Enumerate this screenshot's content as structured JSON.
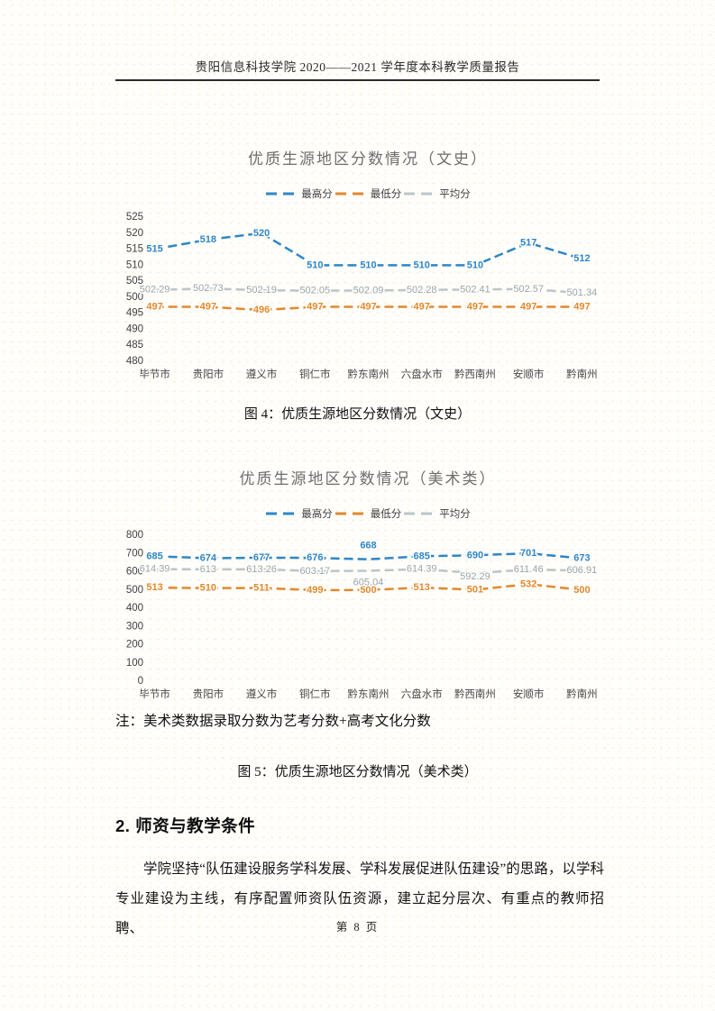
{
  "header": {
    "title": "贵阳信息科技学院 2020——2021 学年度本科教学质量报告"
  },
  "figures": {
    "fig4_caption": "图 4：优质生源地区分数情况（文史）",
    "fig5_caption": "图 5：优质生源地区分数情况（美术类）",
    "note": "注：美术类数据录取分数为艺考分数+高考文化分数"
  },
  "section": {
    "heading": "2. 师资与教学条件",
    "paragraph": "学院坚持“队伍建设服务学科发展、学科发展促进队伍建设”的思路，以学科专业建设为主线，有序配置师资队伍资源，建立起分层次、有重点的教师招聘、"
  },
  "footer": {
    "page_label": "第 8 页"
  },
  "colors": {
    "max_line": "#2e86c6",
    "min_line": "#e2882d",
    "avg_line": "#bcc5c8",
    "avg_label": "#9aa4a8"
  },
  "chart_data": [
    {
      "type": "line",
      "title": "优质生源地区分数情况（文史）",
      "categories": [
        "毕节市",
        "贵阳市",
        "遵义市",
        "铜仁市",
        "黔东南州",
        "六盘水市",
        "黔西南州",
        "安顺市",
        "黔南州"
      ],
      "series": [
        {
          "name": "最高分",
          "color": "#2e86c6",
          "label_color": "#2e86c6",
          "values": [
            515,
            518,
            520,
            510,
            510,
            510,
            510,
            517,
            512
          ]
        },
        {
          "name": "最低分",
          "color": "#e2882d",
          "label_color": "#e2882d",
          "values": [
            497,
            497,
            496,
            497,
            497,
            497,
            497,
            497,
            497
          ]
        },
        {
          "name": "平均分",
          "color": "#bcc5c8",
          "label_color": "#9aa4a8",
          "values": [
            502.29,
            502.73,
            502.19,
            502.05,
            502.09,
            502.28,
            502.41,
            502.57,
            501.34
          ]
        }
      ],
      "ylim": [
        480,
        525
      ],
      "ytick_step": 5,
      "grid": false,
      "legend_position": "top"
    },
    {
      "type": "line",
      "title": "优质生源地区分数情况（美术类）",
      "categories": [
        "毕节市",
        "贵阳市",
        "遵义市",
        "铜仁市",
        "黔东南州",
        "六盘水市",
        "黔西南州",
        "安顺市",
        "黔南州"
      ],
      "series": [
        {
          "name": "最高分",
          "color": "#2e86c6",
          "label_color": "#2e86c6",
          "values": [
            685,
            674,
            677,
            676,
            668,
            685,
            690,
            701,
            673
          ],
          "label_dy": [
            0,
            0,
            0,
            0,
            -15,
            0,
            0,
            0,
            0
          ]
        },
        {
          "name": "最低分",
          "color": "#e2882d",
          "label_color": "#e2882d",
          "values": [
            513,
            510,
            511,
            499,
            500,
            513,
            501,
            532,
            500
          ]
        },
        {
          "name": "平均分",
          "color": "#bcc5c8",
          "label_color": "#9aa4a8",
          "values": [
            614.39,
            613,
            613.26,
            603.17,
            605.04,
            614.39,
            592.29,
            611.46,
            606.91
          ],
          "label_dy": [
            0,
            0,
            0,
            0,
            13,
            0,
            4,
            0,
            0
          ]
        }
      ],
      "ylim": [
        0,
        800
      ],
      "ytick_step": 100,
      "grid": false,
      "legend_position": "top"
    }
  ]
}
